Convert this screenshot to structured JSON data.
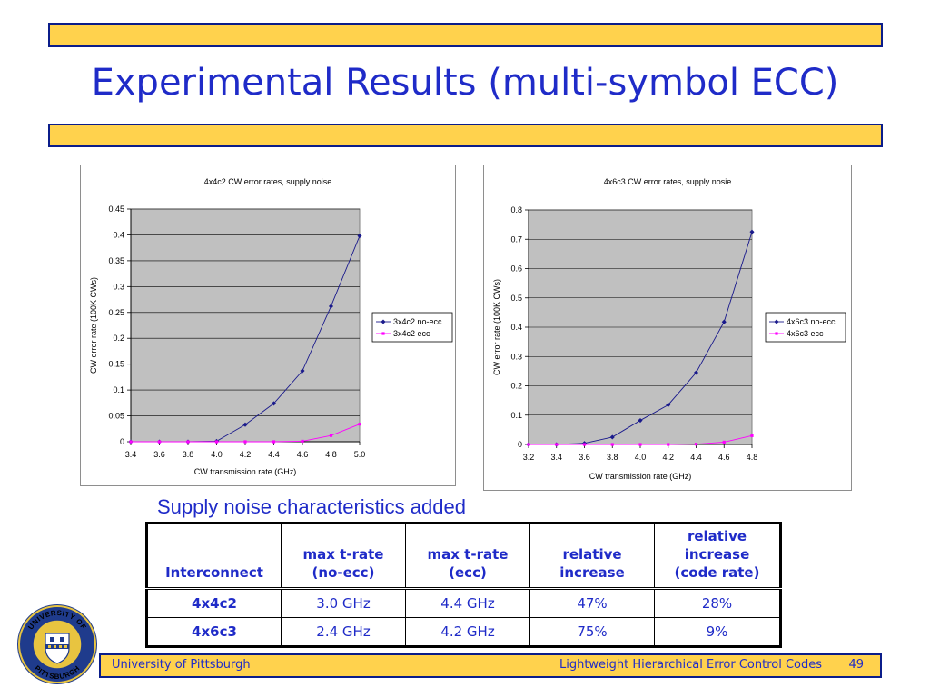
{
  "slide": {
    "title": "Experimental Results (multi-symbol ECC)",
    "subheading": "Supply noise characteristics added",
    "colors": {
      "band": "#ffd24d",
      "border": "#0b1d8a",
      "text": "#1f2bc8",
      "plot_bg": "#c0c0c0",
      "series_no_ecc": "#1a1a8c",
      "series_ecc": "#ff00ff"
    }
  },
  "chart_data": [
    {
      "type": "line",
      "title": "4x4c2 CW error rates, supply noise",
      "xlabel": "CW transmission rate (GHz)",
      "ylabel": "CW error rate (100K CWs)",
      "x": [
        3.4,
        3.6,
        3.8,
        4.0,
        4.2,
        4.4,
        4.6,
        4.8,
        5.0
      ],
      "xticks": [
        "3.4",
        "3.6",
        "3.8",
        "4.0",
        "4.2",
        "4.4",
        "4.6",
        "4.8",
        "5.0"
      ],
      "ylim": [
        0,
        0.45
      ],
      "yticks": [
        "0",
        "0.05",
        "0.1",
        "0.15",
        "0.2",
        "0.25",
        "0.3",
        "0.35",
        "0.4",
        "0.45"
      ],
      "grid": true,
      "legend": "right",
      "series": [
        {
          "name": "3x4c2 no-ecc",
          "values": [
            0,
            0,
            0,
            0.001,
            0.033,
            0.074,
            0.137,
            0.262,
            0.398
          ]
        },
        {
          "name": "3x4c2 ecc",
          "values": [
            0,
            0,
            0,
            0,
            0,
            0,
            0.001,
            0.012,
            0.034
          ]
        }
      ]
    },
    {
      "type": "line",
      "title": "4x6c3 CW error rates, supply nosie",
      "xlabel": "CW transmission rate (GHz)",
      "ylabel": "CW error rate (100K CWs)",
      "x": [
        3.2,
        3.4,
        3.6,
        3.8,
        4.0,
        4.2,
        4.4,
        4.6,
        4.8
      ],
      "xticks": [
        "3.2",
        "3.4",
        "3.6",
        "3.8",
        "4.0",
        "4.2",
        "4.4",
        "4.6",
        "4.8"
      ],
      "ylim": [
        0,
        0.8
      ],
      "yticks": [
        "0",
        "0.1",
        "0.2",
        "0.3",
        "0.4",
        "0.5",
        "0.6",
        "0.7",
        "0.8"
      ],
      "grid": true,
      "legend": "right",
      "series": [
        {
          "name": "4x6c3 no-ecc",
          "values": [
            0,
            0,
            0.004,
            0.025,
            0.082,
            0.135,
            0.245,
            0.418,
            0.725
          ]
        },
        {
          "name": "4x6c3 ecc",
          "values": [
            0,
            0,
            0,
            0,
            0,
            0,
            0.001,
            0.008,
            0.03
          ]
        }
      ]
    }
  ],
  "table": {
    "headers": [
      "Interconnect",
      "max t-rate (no-ecc)",
      "max t-rate (ecc)",
      "relative increase",
      "relative increase (code rate)"
    ],
    "header_lines": [
      [
        "Interconnect"
      ],
      [
        "max t-rate",
        "(no-ecc)"
      ],
      [
        "max t-rate",
        "(ecc)"
      ],
      [
        "relative",
        "increase"
      ],
      [
        "relative",
        "increase",
        "(code rate)"
      ]
    ],
    "rows": [
      [
        "4x4c2",
        "3.0 GHz",
        "4.4 GHz",
        "47%",
        "28%"
      ],
      [
        "4x6c3",
        "2.4 GHz",
        "4.2 GHz",
        "75%",
        "9%"
      ]
    ]
  },
  "footer": {
    "left": "University of Pittsburgh",
    "right": "Lightweight Hierarchical Error Control Codes",
    "page": "49"
  },
  "seal": {
    "icon": "university-seal-icon",
    "top_text": "UNIVERSITY OF",
    "bottom_text": "PITTSBURGH"
  }
}
